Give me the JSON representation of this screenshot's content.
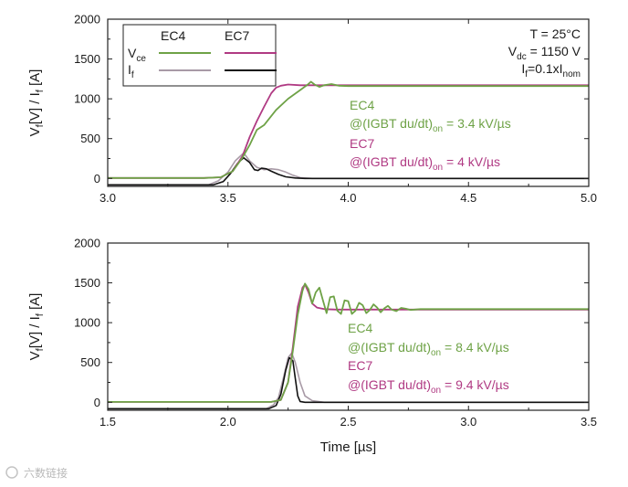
{
  "colors": {
    "ec4_vce": "#6ea246",
    "ec7_vce": "#b03a83",
    "ec4_if": "#a89aa6",
    "ec7_if": "#111111",
    "axis": "#222222",
    "watermark": "#b9b9b9"
  },
  "legend": {
    "col1": "EC4",
    "col2": "EC7",
    "vce_label": "V",
    "vce_sub": "ce",
    "if_label": "I",
    "if_sub": "f"
  },
  "conditions": {
    "temp": "T = 25°C",
    "vdc_pre": "V",
    "vdc_sub": "dc",
    "vdc_post": " = 1150 V",
    "if_pre": "I",
    "if_sub": "f",
    "if_mid": "=0.1xI",
    "if_sub2": "nom"
  },
  "watermark": "六数链接",
  "chart_data": [
    {
      "type": "line",
      "xlim": [
        3.0,
        5.0
      ],
      "ylim": [
        -100,
        2000
      ],
      "x_ticks": [
        "3.0",
        "3.5",
        "4.0",
        "4.5",
        "5.0"
      ],
      "y_ticks": [
        "0",
        "500",
        "1000",
        "1500",
        "2000"
      ],
      "ylabel": {
        "pre": "V",
        "s1": "f",
        "mid": "[V] / I",
        "s2": "f",
        "post": " [A]"
      },
      "xlabel": "",
      "annotations": [
        {
          "series": "EC4",
          "label": "EC4",
          "line_pre": "@(IGBT du/dt)",
          "line_sub": "on",
          "line_post": " = 3.4 kV/µs"
        },
        {
          "series": "EC7",
          "label": "EC7",
          "line_pre": "@(IGBT du/dt)",
          "line_sub": "on",
          "line_post": " = 4 kV/µs"
        }
      ],
      "series": [
        {
          "name": "EC4 Vce",
          "points": [
            [
              3.0,
              5
            ],
            [
              3.4,
              5
            ],
            [
              3.47,
              15
            ],
            [
              3.52,
              90
            ],
            [
              3.56,
              260
            ],
            [
              3.59,
              420
            ],
            [
              3.62,
              610
            ],
            [
              3.65,
              670
            ],
            [
              3.7,
              860
            ],
            [
              3.75,
              1000
            ],
            [
              3.8,
              1110
            ],
            [
              3.83,
              1175
            ],
            [
              3.845,
              1215
            ],
            [
              3.86,
              1180
            ],
            [
              3.88,
              1150
            ],
            [
              3.9,
              1170
            ],
            [
              3.93,
              1185
            ],
            [
              3.96,
              1165
            ],
            [
              4.0,
              1160
            ],
            [
              5.0,
              1160
            ]
          ]
        },
        {
          "name": "EC7 Vce",
          "points": [
            [
              3.0,
              5
            ],
            [
              3.4,
              5
            ],
            [
              3.47,
              15
            ],
            [
              3.52,
              90
            ],
            [
              3.56,
              280
            ],
            [
              3.59,
              520
            ],
            [
              3.62,
              720
            ],
            [
              3.65,
              900
            ],
            [
              3.68,
              1070
            ],
            [
              3.7,
              1140
            ],
            [
              3.72,
              1165
            ],
            [
              3.75,
              1180
            ],
            [
              3.8,
              1170
            ],
            [
              3.85,
              1170
            ],
            [
              4.0,
              1170
            ],
            [
              5.0,
              1170
            ]
          ]
        },
        {
          "name": "EC4 If",
          "points": [
            [
              3.0,
              -80
            ],
            [
              3.42,
              -80
            ],
            [
              3.46,
              -30
            ],
            [
              3.5,
              80
            ],
            [
              3.53,
              220
            ],
            [
              3.565,
              320
            ],
            [
              3.59,
              220
            ],
            [
              3.62,
              140
            ],
            [
              3.65,
              110
            ],
            [
              3.68,
              120
            ],
            [
              3.71,
              110
            ],
            [
              3.74,
              80
            ],
            [
              3.77,
              40
            ],
            [
              3.8,
              10
            ],
            [
              3.85,
              0
            ],
            [
              5.0,
              0
            ]
          ]
        },
        {
          "name": "EC7 If",
          "points": [
            [
              3.0,
              -80
            ],
            [
              3.44,
              -80
            ],
            [
              3.48,
              -40
            ],
            [
              3.51,
              60
            ],
            [
              3.54,
              190
            ],
            [
              3.565,
              260
            ],
            [
              3.59,
              200
            ],
            [
              3.61,
              110
            ],
            [
              3.625,
              100
            ],
            [
              3.64,
              130
            ],
            [
              3.66,
              120
            ],
            [
              3.68,
              90
            ],
            [
              3.71,
              50
            ],
            [
              3.74,
              20
            ],
            [
              3.78,
              5
            ],
            [
              3.82,
              0
            ],
            [
              5.0,
              0
            ]
          ]
        }
      ]
    },
    {
      "type": "line",
      "xlim": [
        1.5,
        3.5
      ],
      "ylim": [
        -100,
        2000
      ],
      "x_ticks": [
        "1.5",
        "2.0",
        "2.5",
        "3.0",
        "3.5"
      ],
      "y_ticks": [
        "0",
        "500",
        "1000",
        "1500",
        "2000"
      ],
      "ylabel": {
        "pre": "V",
        "s1": "f",
        "mid": "[V] / I",
        "s2": "f",
        "post": " [A]"
      },
      "xlabel": "Time [µs]",
      "annotations": [
        {
          "series": "EC4",
          "label": "EC4",
          "line_pre": "@(IGBT du/dt)",
          "line_sub": "on",
          "line_post": " = 8.4 kV/µs"
        },
        {
          "series": "EC7",
          "label": "EC7",
          "line_pre": "@(IGBT du/dt)",
          "line_sub": "on",
          "line_post": " = 9.4 kV/µs"
        }
      ],
      "series": [
        {
          "name": "EC4 Vce",
          "points": [
            [
              1.5,
              5
            ],
            [
              2.18,
              5
            ],
            [
              2.22,
              30
            ],
            [
              2.25,
              250
            ],
            [
              2.27,
              650
            ],
            [
              2.29,
              1100
            ],
            [
              2.31,
              1400
            ],
            [
              2.32,
              1490
            ],
            [
              2.335,
              1420
            ],
            [
              2.35,
              1240
            ],
            [
              2.365,
              1380
            ],
            [
              2.38,
              1440
            ],
            [
              2.395,
              1280
            ],
            [
              2.41,
              1120
            ],
            [
              2.425,
              1320
            ],
            [
              2.44,
              1330
            ],
            [
              2.455,
              1150
            ],
            [
              2.47,
              1110
            ],
            [
              2.485,
              1280
            ],
            [
              2.5,
              1270
            ],
            [
              2.515,
              1110
            ],
            [
              2.53,
              1150
            ],
            [
              2.545,
              1250
            ],
            [
              2.56,
              1220
            ],
            [
              2.575,
              1120
            ],
            [
              2.59,
              1160
            ],
            [
              2.605,
              1230
            ],
            [
              2.62,
              1190
            ],
            [
              2.635,
              1130
            ],
            [
              2.65,
              1180
            ],
            [
              2.665,
              1210
            ],
            [
              2.68,
              1165
            ],
            [
              2.7,
              1145
            ],
            [
              2.72,
              1185
            ],
            [
              2.74,
              1175
            ],
            [
              2.76,
              1160
            ],
            [
              2.8,
              1170
            ],
            [
              3.5,
              1170
            ]
          ]
        },
        {
          "name": "EC7 Vce",
          "points": [
            [
              1.5,
              5
            ],
            [
              2.18,
              5
            ],
            [
              2.22,
              30
            ],
            [
              2.25,
              250
            ],
            [
              2.27,
              700
            ],
            [
              2.29,
              1200
            ],
            [
              2.31,
              1440
            ],
            [
              2.32,
              1480
            ],
            [
              2.335,
              1380
            ],
            [
              2.35,
              1240
            ],
            [
              2.37,
              1190
            ],
            [
              2.4,
              1170
            ],
            [
              2.45,
              1165
            ],
            [
              3.5,
              1165
            ]
          ]
        },
        {
          "name": "EC4 If",
          "points": [
            [
              1.5,
              -80
            ],
            [
              2.16,
              -80
            ],
            [
              2.19,
              -30
            ],
            [
              2.21,
              60
            ],
            [
              2.23,
              300
            ],
            [
              2.25,
              560
            ],
            [
              2.265,
              620
            ],
            [
              2.28,
              500
            ],
            [
              2.3,
              250
            ],
            [
              2.32,
              80
            ],
            [
              2.35,
              20
            ],
            [
              2.4,
              0
            ],
            [
              3.5,
              0
            ]
          ]
        },
        {
          "name": "EC7 If",
          "points": [
            [
              1.5,
              -80
            ],
            [
              2.17,
              -80
            ],
            [
              2.2,
              -40
            ],
            [
              2.22,
              100
            ],
            [
              2.24,
              400
            ],
            [
              2.255,
              560
            ],
            [
              2.27,
              520
            ],
            [
              2.28,
              300
            ],
            [
              2.29,
              80
            ],
            [
              2.3,
              10
            ],
            [
              2.32,
              0
            ],
            [
              3.5,
              0
            ]
          ]
        }
      ]
    }
  ]
}
